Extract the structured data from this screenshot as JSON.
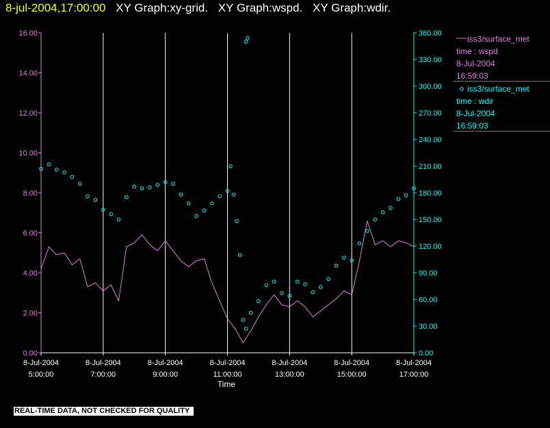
{
  "header": {
    "timestamp": "8-jul-2004,17:00:00",
    "graph_titles": [
      "XY Graph:xy-grid.",
      "XY Graph:wspd.",
      "XY Graph:wdir."
    ]
  },
  "footer": {
    "notice": "REAL-TIME DATA, NOT CHECKED FOR QUALITY"
  },
  "colors": {
    "wspd": "#e080e0",
    "wdir": "#00ffff",
    "grid": "#ffffff",
    "axis_text": "#ffffff"
  },
  "chart_data": {
    "type": "line",
    "xlabel": "Time",
    "x_ticks": [
      {
        "date": "8-Jul-2004",
        "time": "5:00:00",
        "hour": 5
      },
      {
        "date": "8-Jul-2004",
        "time": "7:00:00",
        "hour": 7
      },
      {
        "date": "8-Jul-2004",
        "time": "9:00:00",
        "hour": 9
      },
      {
        "date": "8-Jul-2004",
        "time": "11:00:00",
        "hour": 11
      },
      {
        "date": "8-Jul-2004",
        "time": "13:00:00",
        "hour": 13
      },
      {
        "date": "8-Jul-2004",
        "time": "15:00:00",
        "hour": 15
      },
      {
        "date": "8-Jul-2004",
        "time": "17:00:00",
        "hour": 17
      }
    ],
    "xlim": [
      5,
      17
    ],
    "y_left": {
      "lim": [
        0,
        16
      ],
      "ticks": [
        "0.00",
        "2.00",
        "4.00",
        "6.00",
        "8.00",
        "10.00",
        "12.00",
        "14.00",
        "16.00"
      ]
    },
    "y_right": {
      "lim": [
        0,
        360
      ],
      "ticks": [
        "0.00",
        "30.00",
        "60.00",
        "90.00",
        "120.00",
        "150.00",
        "180.00",
        "210.00",
        "240.00",
        "270.00",
        "300.00",
        "330.00",
        "360.00"
      ]
    },
    "grid": "vertical",
    "legend_position": "right",
    "series": [
      {
        "name": "iss3/surface_met",
        "variable": "time : wspd",
        "date": "8-Jul-2004",
        "time": "16:59:03",
        "axis": "left",
        "style": "line",
        "x": [
          5.0,
          5.25,
          5.5,
          5.75,
          6.0,
          6.25,
          6.5,
          6.75,
          7.0,
          7.25,
          7.5,
          7.75,
          8.0,
          8.25,
          8.5,
          8.75,
          9.0,
          9.25,
          9.5,
          9.75,
          10.0,
          10.25,
          10.5,
          10.75,
          11.0,
          11.25,
          11.5,
          11.75,
          12.0,
          12.25,
          12.5,
          12.75,
          13.0,
          13.25,
          13.5,
          13.75,
          14.0,
          14.25,
          14.5,
          14.75,
          15.0,
          15.25,
          15.5,
          15.75,
          16.0,
          16.25,
          16.5,
          16.75,
          17.0
        ],
        "values": [
          4.2,
          5.3,
          4.9,
          5.0,
          4.4,
          4.7,
          3.3,
          3.5,
          3.1,
          3.4,
          2.6,
          5.3,
          5.5,
          5.9,
          5.4,
          5.1,
          5.6,
          5.1,
          4.6,
          4.3,
          4.6,
          4.7,
          3.5,
          2.6,
          1.7,
          1.2,
          0.5,
          1.1,
          1.8,
          2.4,
          2.9,
          2.4,
          2.3,
          2.6,
          2.3,
          1.8,
          2.1,
          2.4,
          2.7,
          3.1,
          2.9,
          4.6,
          6.6,
          5.4,
          5.6,
          5.3,
          5.6,
          5.5,
          5.3
        ]
      },
      {
        "name": "iss3/surface_met",
        "variable": "time : wdir",
        "date": "8-Jul-2004",
        "time": "16:59:03",
        "axis": "right",
        "style": "markers",
        "x": [
          5.0,
          5.25,
          5.5,
          5.75,
          6.0,
          6.25,
          6.5,
          6.75,
          7.0,
          7.25,
          7.5,
          7.75,
          8.0,
          8.25,
          8.5,
          8.75,
          9.0,
          9.25,
          9.5,
          9.75,
          10.0,
          10.25,
          10.5,
          10.75,
          11.0,
          11.1,
          11.2,
          11.3,
          11.4,
          11.5,
          11.6,
          11.75,
          12.0,
          12.25,
          12.5,
          12.75,
          13.0,
          13.25,
          13.5,
          13.75,
          14.0,
          14.25,
          14.5,
          14.75,
          15.0,
          15.25,
          15.5,
          15.75,
          16.0,
          16.25,
          16.5,
          16.75,
          17.0,
          11.6,
          11.65
        ],
        "values": [
          207,
          212,
          206,
          203,
          198,
          190,
          176,
          172,
          161,
          156,
          150,
          175,
          187,
          185,
          186,
          189,
          192,
          190,
          178,
          168,
          154,
          160,
          168,
          176,
          182,
          210,
          178,
          148,
          110,
          37,
          27,
          45,
          58,
          76,
          80,
          67,
          64,
          80,
          77,
          68,
          74,
          83,
          98,
          107,
          104,
          123,
          137,
          150,
          158,
          163,
          173,
          177,
          185,
          350,
          354
        ]
      }
    ]
  }
}
